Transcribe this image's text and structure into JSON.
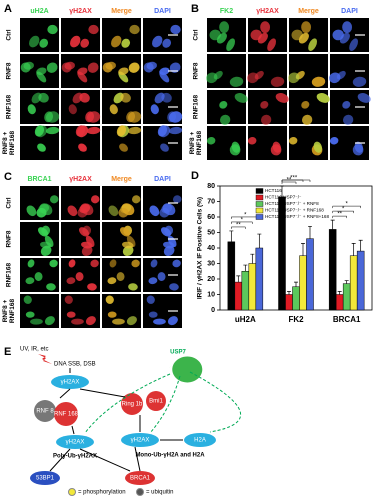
{
  "panels": [
    {
      "label": "A",
      "columns": [
        "uH2A",
        "γH2AX",
        "Merge",
        "DAPI"
      ],
      "column_colors": [
        "#39d353",
        "#e8323c",
        "#f08a24",
        "#4a6cf0"
      ],
      "rows": [
        [
          "Ctrl"
        ],
        [
          "RNF8"
        ],
        [
          "RNF168"
        ],
        [
          "RNF8 +",
          "RNF168"
        ]
      ]
    },
    {
      "label": "B",
      "columns": [
        "FK2",
        "γH2AX",
        "Merge",
        "DAPI"
      ],
      "column_colors": [
        "#39d353",
        "#e8323c",
        "#f08a24",
        "#4a6cf0"
      ],
      "rows": [
        [
          "Ctrl"
        ],
        [
          "RNF8"
        ],
        [
          "RNF168"
        ],
        [
          "RNF8 +",
          "RNF168"
        ]
      ]
    },
    {
      "label": "C",
      "columns": [
        "BRCA1",
        "γH2AX",
        "Merge",
        "DAPI"
      ],
      "column_colors": [
        "#39d353",
        "#e8323c",
        "#f08a24",
        "#4a6cf0"
      ],
      "rows": [
        [
          "Ctrl"
        ],
        [
          "RNF8"
        ],
        [
          "RNF168"
        ],
        [
          "RNF8 +",
          "RNF168"
        ]
      ]
    }
  ],
  "chart_data": {
    "type": "bar",
    "panel_label": "D",
    "ylabel": "IRIF / γH2AX IF Positive Cells (%)",
    "categories": [
      "uH2A",
      "FK2",
      "BRCA1"
    ],
    "series": [
      {
        "name": "HCT116",
        "color": "#000000",
        "values": [
          44,
          73,
          52
        ],
        "errors": [
          7,
          7,
          6
        ]
      },
      {
        "name": "HCT116-USP7⁻/⁻",
        "color": "#e01b24",
        "values": [
          18,
          10,
          10
        ],
        "errors": [
          4,
          2,
          2
        ]
      },
      {
        "name": "HCT116-USP7⁻/⁻ + RNF8",
        "color": "#5cc85c",
        "values": [
          25,
          15,
          17
        ],
        "errors": [
          4,
          3,
          2
        ]
      },
      {
        "name": "HCT116-USP7⁻/⁻ + RNF168",
        "color": "#f2e83a",
        "values": [
          30,
          35,
          35
        ],
        "errors": [
          6,
          8,
          8
        ]
      },
      {
        "name": "HCT116-USP7⁻/⁻ + RNF8+168",
        "color": "#4a67d8",
        "values": [
          40,
          46,
          38
        ],
        "errors": [
          9,
          8,
          7
        ]
      }
    ],
    "significance": [
      [
        "*",
        "*",
        "**"
      ],
      [
        "*",
        "**",
        "**"
      ],
      [
        "*",
        "*",
        "**"
      ]
    ],
    "ylim": [
      0,
      80
    ],
    "yticks": [
      0,
      10,
      20,
      30,
      40,
      50,
      60,
      70,
      80
    ]
  },
  "diagram": {
    "label": "E",
    "trigger": "UV, IR, etc",
    "damage": "DNA SSB, DSB",
    "gh2ax_top": "γH2AX",
    "usp7": "USP7",
    "rnf8": "RNF 8",
    "rnf168": "RNF 168",
    "ring1b": "Ring 1b",
    "bmi1": "Bmi1",
    "gh2ax_poly": "γH2AX",
    "gh2ax_mono": "γH2AX",
    "h2a": "H2A",
    "poly_label": "Poly-Ub-γH2AX",
    "mono_label": "Mono-Ub-γH2A and H2A",
    "bp53": "53BP1",
    "brca1": "BRCA1",
    "legend_p": "= phosphorylation",
    "legend_u": "= ubiquitin"
  }
}
